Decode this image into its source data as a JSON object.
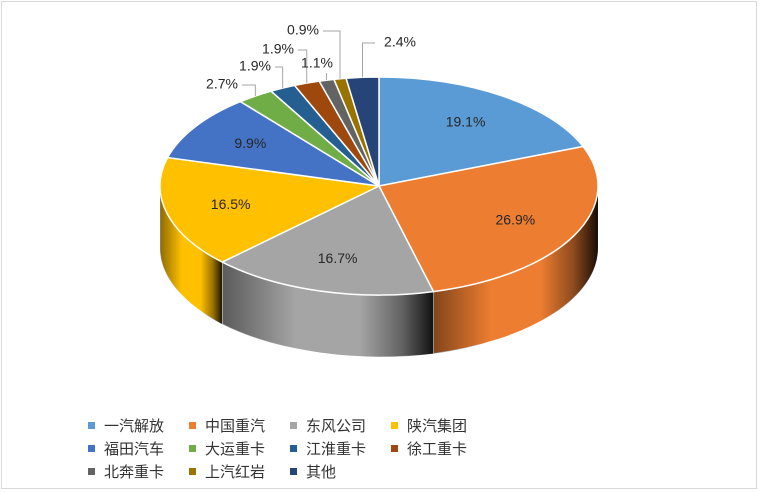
{
  "chart_data": {
    "type": "pie",
    "style": "3d",
    "start": "top, clockwise",
    "legend_position": "bottom",
    "slices": [
      {
        "name": "一汽解放",
        "value": 19.1,
        "label": "19.1%",
        "color": "#5b9bd5"
      },
      {
        "name": "中国重汽",
        "value": 26.9,
        "label": "26.9%",
        "color": "#ed7d31"
      },
      {
        "name": "东风公司",
        "value": 16.7,
        "label": "16.7%",
        "color": "#a5a5a5"
      },
      {
        "name": "陕汽集团",
        "value": 16.5,
        "label": "16.5%",
        "color": "#ffc000"
      },
      {
        "name": "福田汽车",
        "value": 9.9,
        "label": "9.9%",
        "color": "#4472c4"
      },
      {
        "name": "大运重卡",
        "value": 2.7,
        "label": "2.7%",
        "color": "#70ad47"
      },
      {
        "name": "江淮重卡",
        "value": 1.9,
        "label": "1.9%",
        "color": "#255e91"
      },
      {
        "name": "徐工重卡",
        "value": 1.9,
        "label": "1.9%",
        "color": "#9e480e"
      },
      {
        "name": "北奔重卡",
        "value": 1.1,
        "label": "1.1%",
        "color": "#636363"
      },
      {
        "name": "上汽红岩",
        "value": 0.9,
        "label": "0.9%",
        "color": "#997300"
      },
      {
        "name": "其他",
        "value": 2.4,
        "label": "2.4%",
        "color": "#264478"
      }
    ]
  }
}
